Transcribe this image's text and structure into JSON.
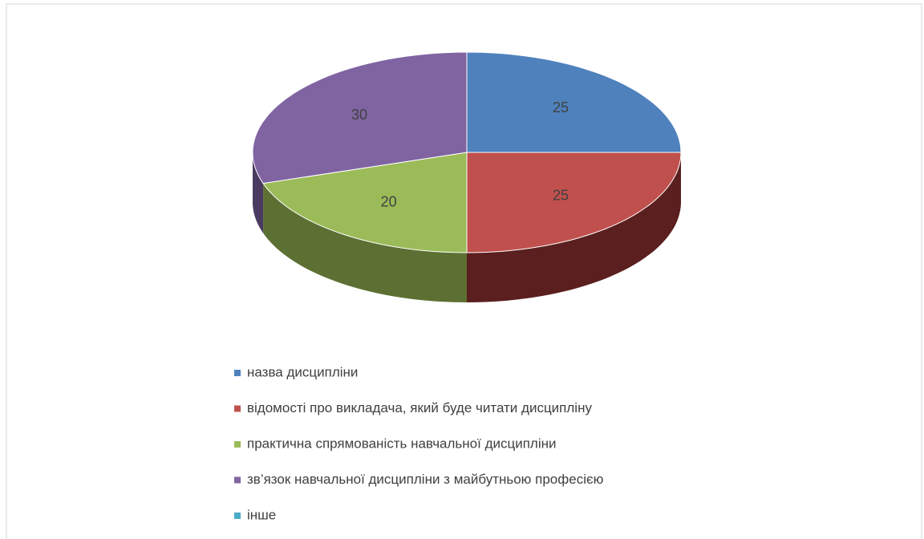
{
  "chart_data": {
    "type": "pie",
    "categories": [
      "назва дисципліни",
      "відомості про викладача, який буде читати дисципліну",
      "практична спрямованість навчальної дисципліни",
      "зв’язок навчальної дисципліни з майбутньою професією",
      "інше"
    ],
    "values": [
      25,
      25,
      20,
      30,
      0
    ],
    "colors": [
      "#4f81bd",
      "#c0504d",
      "#9bbb59",
      "#8064a2",
      "#4bacc6"
    ],
    "side_colors": [
      "#2c4a70",
      "#5a1f1e",
      "#5d7033",
      "#4a3a60",
      "#2a6a7a"
    ],
    "legend": "bottom"
  }
}
